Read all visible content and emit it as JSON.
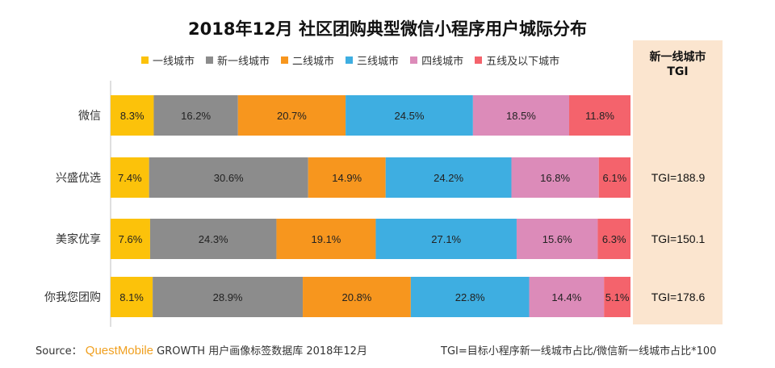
{
  "footer": {
    "source_label": "Source：",
    "brand": "QuestMobile",
    "source_rest": "GROWTH 用户画像标签数据库 2018年12月",
    "note": "TGI=目标小程序新一线城市占比/微信新一线城市占比*100"
  },
  "chart_data": {
    "type": "bar",
    "orientation": "horizontal",
    "stacked": true,
    "percent_stacked": true,
    "title": "2018年12月 社区团购典型微信小程序用户城际分布",
    "legend_position": "top",
    "categories": [
      "微信",
      "兴盛优选",
      "美家优享",
      "你我您团购"
    ],
    "series": [
      {
        "name": "一线城市",
        "color": "#fcc20a",
        "values": [
          8.3,
          7.4,
          7.6,
          8.1
        ]
      },
      {
        "name": "新一线城市",
        "color": "#8c8c8c",
        "values": [
          16.2,
          30.6,
          24.3,
          28.9
        ]
      },
      {
        "name": "二线城市",
        "color": "#f7961e",
        "values": [
          20.7,
          14.9,
          19.1,
          20.8
        ]
      },
      {
        "name": "三线城市",
        "color": "#3eaee1",
        "values": [
          24.5,
          24.2,
          27.1,
          22.8
        ]
      },
      {
        "name": "四线城市",
        "color": "#dc8bb9",
        "values": [
          18.5,
          16.8,
          15.6,
          14.4
        ]
      },
      {
        "name": "五线及以下城市",
        "color": "#f4636c",
        "values": [
          11.8,
          6.1,
          6.3,
          5.1
        ]
      }
    ],
    "value_labels_suffix": "%",
    "tgi": {
      "header_line1": "新一线城市",
      "header_line2": "TGI",
      "panel_color": "#fbe5cf",
      "values": [
        "",
        "TGI=188.9",
        "TGI=150.1",
        "TGI=178.6"
      ]
    },
    "grid": false
  }
}
